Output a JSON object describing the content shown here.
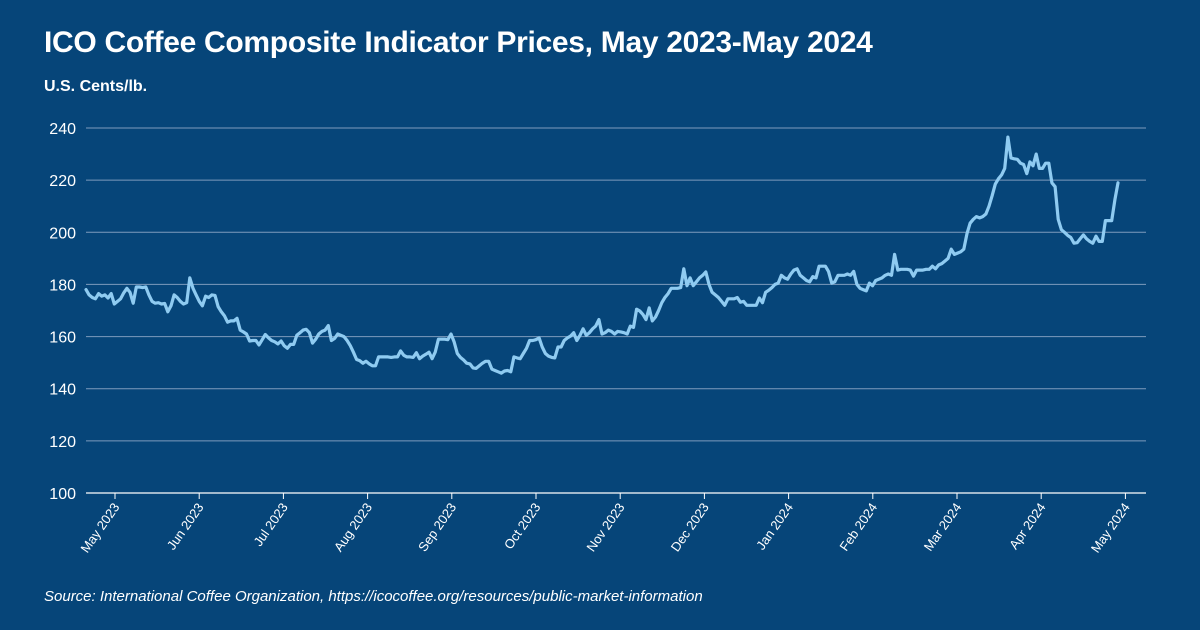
{
  "header": {
    "title": "ICO Coffee Composite Indicator Prices, May 2023-May 2024",
    "unit": "U.S. Cents/lb."
  },
  "footer": {
    "source": "Source: International Coffee Organization, https://icocoffee.org/resources/public-market-information"
  },
  "colors": {
    "background": "#064579",
    "line": "#8fcbf1",
    "grid": "#7e9bbd",
    "text": "#ffffff"
  },
  "chart_data": {
    "type": "line",
    "title": "ICO Coffee Composite Indicator Prices, May 2023-May 2024",
    "ylabel": "U.S. Cents/lb.",
    "xlabel": "",
    "x_axis": "trading days, May 2023 to May 2024",
    "ylim": [
      100,
      240
    ],
    "y_ticks": [
      100,
      120,
      140,
      160,
      180,
      200,
      220,
      240
    ],
    "x_ticks": [
      "May 2023",
      "Jun 2023",
      "Jul 2023",
      "Aug 2023",
      "Sep 2023",
      "Oct 2023",
      "Nov 2023",
      "Dec 2023",
      "Jan 2024",
      "Feb 2024",
      "Mar 2024",
      "Apr 2024",
      "May 2024"
    ],
    "grid": "horizontal",
    "legend": "none",
    "series": [
      {
        "values": [
          178,
          176,
          175,
          174.5,
          176.5,
          175.5,
          176,
          174.8,
          176.5,
          172.5,
          173.5,
          174.5,
          176.8,
          178.5,
          177,
          172.8,
          179,
          179,
          178.8,
          179,
          176,
          173.5,
          172.8,
          173,
          172.5,
          172.7,
          169.5,
          171.8,
          176,
          175,
          173.5,
          172.5,
          173,
          182.5,
          178.5,
          176,
          173.5,
          171.8,
          175.5,
          175,
          176,
          175.8,
          171.5,
          169.5,
          168,
          165.5,
          166,
          166,
          167,
          162.5,
          161.8,
          161,
          158.3,
          158.5,
          158.5,
          156.8,
          158.8,
          160.8,
          159.5,
          158.5,
          158,
          157.2,
          158.3,
          156.5,
          155.5,
          157,
          157,
          160.5,
          161.5,
          162.5,
          162.8,
          161.5,
          157.5,
          159,
          161,
          162,
          162.5,
          164.2,
          158.5,
          159.3,
          161,
          160.5,
          160,
          158.5,
          156.5,
          154,
          151.2,
          150.8,
          149.8,
          150.5,
          149.5,
          148.8,
          148.8,
          152.2,
          152.2,
          152.2,
          152.2,
          152,
          152.2,
          152.2,
          154.5,
          152.8,
          152.2,
          152.2,
          152,
          153.8,
          151.5,
          152.5,
          153.2,
          154,
          151.5,
          154,
          159,
          159,
          159,
          158.8,
          161,
          158,
          153.5,
          152,
          151,
          149.8,
          149.5,
          148,
          147.8,
          148.8,
          149.8,
          150.5,
          150.5,
          147.5,
          147,
          146.5,
          146,
          146.8,
          147,
          146.5,
          152.2,
          151.8,
          151.5,
          153.5,
          155.5,
          158.5,
          158.5,
          158.8,
          159.5,
          156,
          153.5,
          152.5,
          152,
          151.8,
          156,
          156,
          158.5,
          159.5,
          160.2,
          161.5,
          158.5,
          160.5,
          163,
          160.5,
          161.5,
          163,
          164,
          166.5,
          161,
          161.5,
          162.5,
          162,
          161,
          162,
          161.8,
          161.5,
          161,
          164,
          163.5,
          170.5,
          169.8,
          168.5,
          166.5,
          171,
          166,
          167.5,
          170,
          173,
          175,
          176.5,
          178.5,
          178.5,
          178.5,
          178.8,
          186,
          179.5,
          182.5,
          179.5,
          181,
          182.5,
          183.5,
          184.8,
          180,
          177,
          176,
          175,
          173.5,
          172,
          174.5,
          174.5,
          174.5,
          175,
          173.2,
          173.5,
          172,
          172,
          172,
          172,
          174.8,
          173,
          177,
          177.8,
          178.8,
          180,
          180.5,
          183.5,
          182.5,
          182,
          184,
          185.5,
          186,
          183.5,
          182.5,
          181.5,
          181,
          183,
          182.5,
          187,
          187,
          187,
          185,
          180.5,
          181,
          183.5,
          183.5,
          183.5,
          184,
          183.5,
          185,
          180,
          178.5,
          178,
          177.5,
          180.5,
          179.5,
          181.5,
          182,
          182.5,
          183.5,
          184,
          183.5,
          191.5,
          185.5,
          185.8,
          185.8,
          185.8,
          185.5,
          183.2,
          185.5,
          185.5,
          185.5,
          185.8,
          185.8,
          187,
          186,
          187.5,
          188,
          189,
          190,
          193.5,
          191.5,
          192,
          192.5,
          193.5,
          199.5,
          203.5,
          205,
          206,
          205.5,
          206,
          207,
          210,
          214,
          218.5,
          220.5,
          222,
          224.5,
          236.5,
          228.5,
          228.2,
          228,
          226.5,
          226,
          222.5,
          227,
          225.5,
          230,
          224.5,
          224.5,
          226.5,
          226.5,
          219,
          217.5,
          205,
          201,
          200,
          198.8,
          198,
          195.8,
          196,
          197.5,
          199,
          197.5,
          196.5,
          195.8,
          198.5,
          196.5,
          196.5,
          204.5,
          204.5,
          204.5,
          212.5,
          219
        ]
      }
    ]
  }
}
